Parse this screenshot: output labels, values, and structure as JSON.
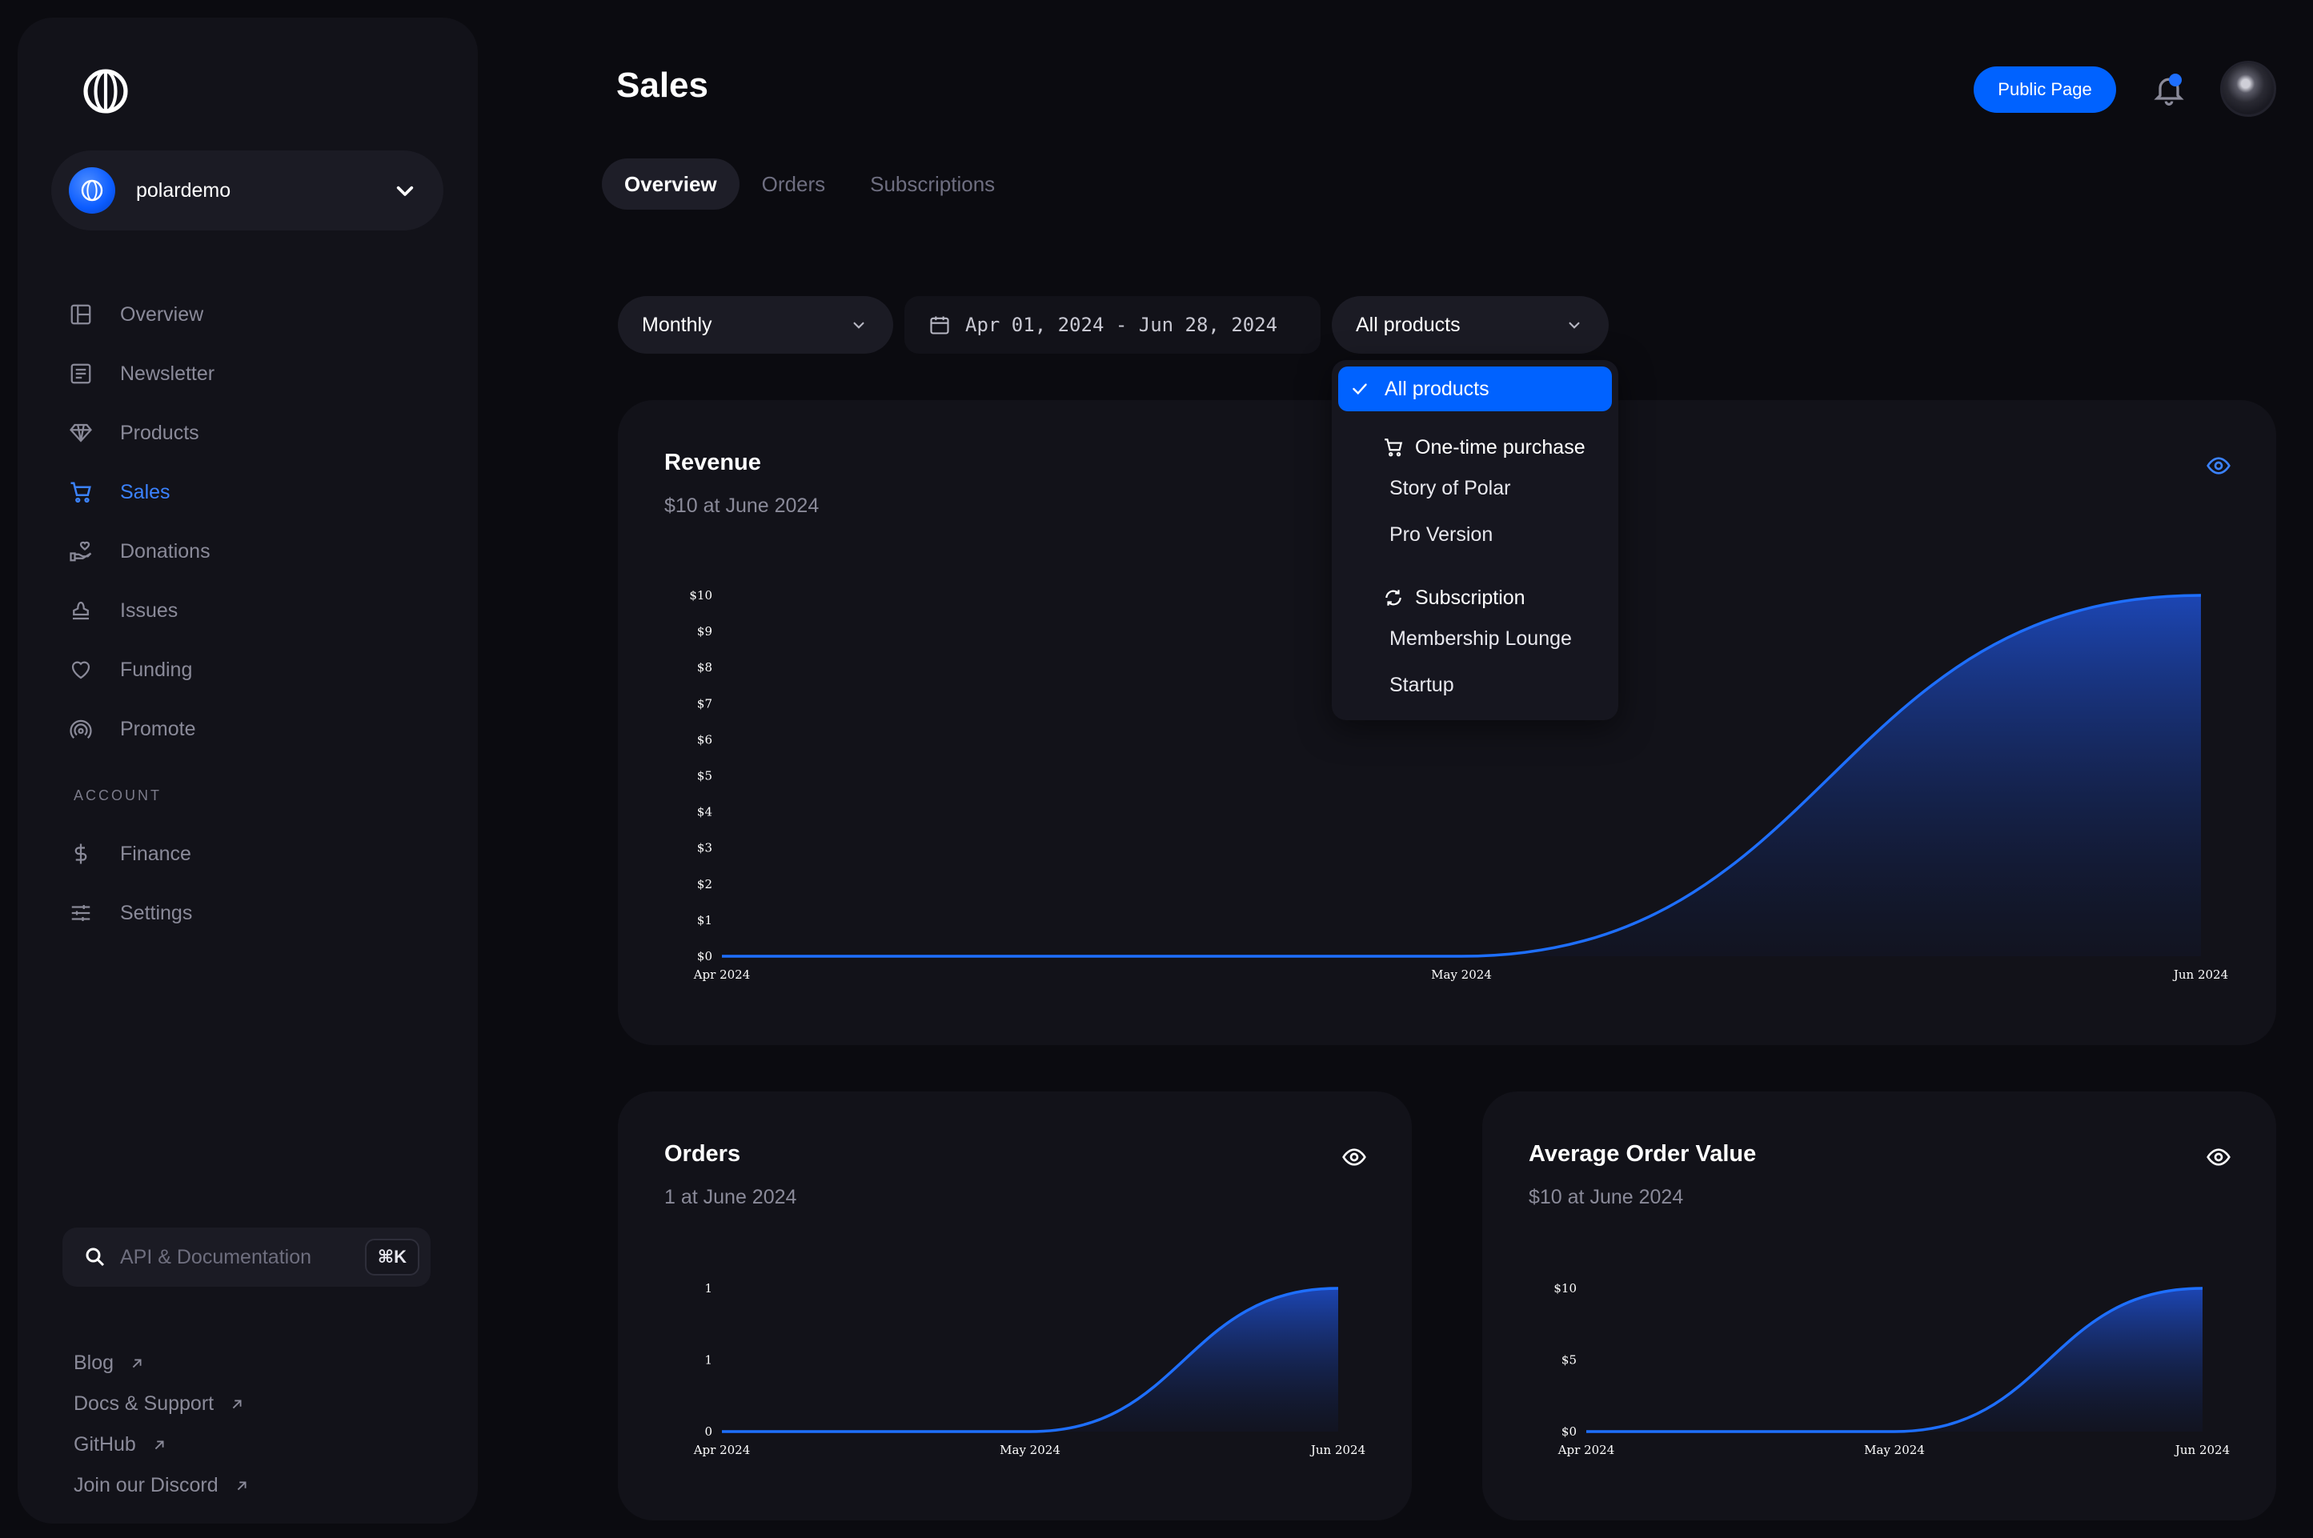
{
  "sidebar": {
    "org": {
      "name": "polardemo"
    },
    "nav": [
      {
        "label": "Overview",
        "icon": "layout-icon"
      },
      {
        "label": "Newsletter",
        "icon": "newsletter-icon"
      },
      {
        "label": "Products",
        "icon": "diamond-icon"
      },
      {
        "label": "Sales",
        "icon": "cart-icon",
        "active": true
      },
      {
        "label": "Donations",
        "icon": "hand-heart-icon"
      },
      {
        "label": "Issues",
        "icon": "stamp-icon"
      },
      {
        "label": "Funding",
        "icon": "heart-icon"
      },
      {
        "label": "Promote",
        "icon": "broadcast-icon"
      }
    ],
    "account_label": "ACCOUNT",
    "account_nav": [
      {
        "label": "Finance",
        "icon": "dollar-icon"
      },
      {
        "label": "Settings",
        "icon": "sliders-icon"
      }
    ],
    "search": {
      "placeholder": "API & Documentation",
      "shortcut": "⌘K"
    },
    "links": [
      {
        "label": "Blog"
      },
      {
        "label": "Docs & Support"
      },
      {
        "label": "GitHub"
      },
      {
        "label": "Join our Discord"
      }
    ]
  },
  "header": {
    "title": "Sales",
    "public_page_label": "Public Page"
  },
  "tabs": [
    {
      "label": "Overview",
      "active": true
    },
    {
      "label": "Orders"
    },
    {
      "label": "Subscriptions"
    }
  ],
  "filters": {
    "interval": "Monthly",
    "date_range": "Apr 01, 2024 - Jun 28, 2024",
    "product": "All products"
  },
  "dropdown": {
    "selected": "All products",
    "groups": [
      {
        "label": "One-time purchase",
        "icon": "cart-icon",
        "items": [
          "Story of Polar",
          "Pro Version"
        ]
      },
      {
        "label": "Subscription",
        "icon": "refresh-icon",
        "items": [
          "Membership Lounge",
          "Startup"
        ]
      }
    ]
  },
  "colors": {
    "accent": "#0062ff",
    "line": "#1e6fff",
    "background": "#0b0b10",
    "card": "#121219"
  },
  "cards": {
    "revenue": {
      "title": "Revenue",
      "subtitle": "$10 at June 2024"
    },
    "orders": {
      "title": "Orders",
      "subtitle": "1 at June 2024"
    },
    "aov": {
      "title": "Average Order Value",
      "subtitle": "$10 at June 2024"
    }
  },
  "chart_data": [
    {
      "type": "area",
      "title": "Revenue",
      "x": [
        "Apr 2024",
        "May 2024",
        "Jun 2024"
      ],
      "values": [
        0,
        0,
        10
      ],
      "y_ticks": [
        "$0",
        "$1",
        "$2",
        "$3",
        "$4",
        "$5",
        "$6",
        "$7",
        "$8",
        "$9",
        "$10"
      ],
      "ylim": [
        0,
        10
      ]
    },
    {
      "type": "area",
      "title": "Orders",
      "x": [
        "Apr 2024",
        "May 2024",
        "Jun 2024"
      ],
      "values": [
        0,
        0,
        1
      ],
      "y_ticks": [
        "0",
        "1",
        "1"
      ],
      "ylim": [
        0,
        1
      ]
    },
    {
      "type": "area",
      "title": "Average Order Value",
      "x": [
        "Apr 2024",
        "May 2024",
        "Jun 2024"
      ],
      "values": [
        0,
        0,
        10
      ],
      "y_ticks": [
        "$0",
        "$5",
        "$10"
      ],
      "ylim": [
        0,
        10
      ]
    }
  ]
}
